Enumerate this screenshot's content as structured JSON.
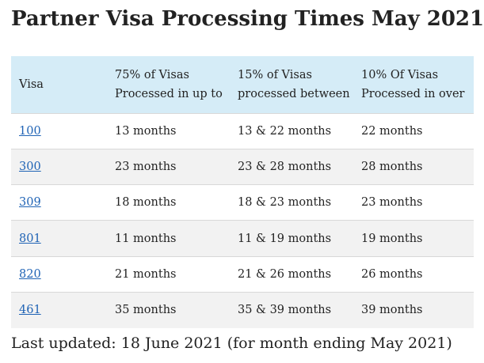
{
  "title": "Partner Visa Processing Times May 2021",
  "table": {
    "headers": [
      {
        "lines": [
          "Visa"
        ]
      },
      {
        "lines": [
          "75% of Visas",
          "Processed in up to"
        ]
      },
      {
        "lines": [
          "15% of Visas",
          "processed between"
        ]
      },
      {
        "lines": [
          "10% Of Visas",
          "Processed in over"
        ]
      }
    ],
    "rows": [
      {
        "visa": "100",
        "p75": "13 months",
        "p15": "13 & 22 months",
        "p10": "22 months"
      },
      {
        "visa": "300",
        "p75": "23 months",
        "p15": "23 & 28 months",
        "p10": "28 months"
      },
      {
        "visa": "309",
        "p75": "18 months",
        "p15": "18 & 23 months",
        "p10": "23 months"
      },
      {
        "visa": "801",
        "p75": "11 months",
        "p15": "11 & 19 months",
        "p10": "19 months"
      },
      {
        "visa": "820",
        "p75": "21 months",
        "p15": "21 & 26 months",
        "p10": "26 months"
      },
      {
        "visa": "461",
        "p75": "35 months",
        "p15": "35 & 39 months",
        "p10": "39 months"
      }
    ]
  },
  "footer": "Last updated: 18 June 2021 (for month ending May 2021)",
  "colors": {
    "header_bg": "#d5ecf7",
    "link": "#1f63b5",
    "stripe": "#f2f2f2"
  }
}
